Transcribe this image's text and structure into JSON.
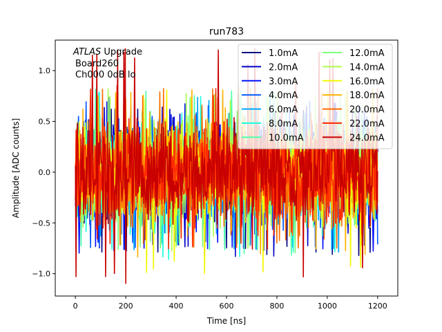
{
  "chart_data": {
    "type": "line",
    "title": "run783",
    "xlabel": "Time [ns]",
    "ylabel": "Amplitude [ADC counts]",
    "xlim": [
      -80,
      1280
    ],
    "ylim": [
      -1.22,
      1.3
    ],
    "xticks": [
      0,
      200,
      400,
      600,
      800,
      1000,
      1200
    ],
    "yticks": [
      -1.0,
      -0.5,
      0.0,
      0.5,
      1.0
    ],
    "xtick_labels": [
      "0",
      "200",
      "400",
      "600",
      "800",
      "1000",
      "1200"
    ],
    "ytick_labels": [
      "−1.0",
      "−0.5",
      "0.0",
      "0.5",
      "1.0"
    ],
    "grid": false,
    "legend_position": "top-right",
    "annotation": {
      "atlas": "ATLAS",
      "upgrade": " Upgrade",
      "board": "Board260",
      "channel": "Ch000 0dB lo"
    },
    "x_range_ns": [
      0,
      1200
    ],
    "series": [
      {
        "name": "1.0mA",
        "color": "#00007f",
        "min": -0.85,
        "max": 0.62,
        "seed": 11
      },
      {
        "name": "2.0mA",
        "color": "#0000c8",
        "min": -0.84,
        "max": 0.68,
        "seed": 23
      },
      {
        "name": "3.0mA",
        "color": "#0010ff",
        "min": -0.8,
        "max": 0.7,
        "seed": 37
      },
      {
        "name": "4.0mA",
        "color": "#0058ff",
        "min": -0.78,
        "max": 0.74,
        "seed": 41
      },
      {
        "name": "6.0mA",
        "color": "#00a4ff",
        "min": -0.8,
        "max": 0.79,
        "seed": 53
      },
      {
        "name": "8.0mA",
        "color": "#19ffde",
        "min": -0.86,
        "max": 0.8,
        "seed": 67
      },
      {
        "name": "10.0mA",
        "color": "#4dffaa",
        "min": -0.82,
        "max": 0.82,
        "seed": 71
      },
      {
        "name": "12.0mA",
        "color": "#7dff7a",
        "min": -0.8,
        "max": 0.8,
        "seed": 83
      },
      {
        "name": "14.0mA",
        "color": "#aaff4d",
        "min": -0.78,
        "max": 0.82,
        "seed": 97
      },
      {
        "name": "16.0mA",
        "color": "#f4f802",
        "min": -1.02,
        "max": 0.84,
        "seed": 101
      },
      {
        "name": "18.0mA",
        "color": "#ffb200",
        "min": -0.84,
        "max": 0.84,
        "seed": 113
      },
      {
        "name": "20.0mA",
        "color": "#ff6c00",
        "min": -0.78,
        "max": 0.86,
        "seed": 127
      },
      {
        "name": "22.0mA",
        "color": "#ff2a00",
        "min": -0.76,
        "max": 0.88,
        "seed": 131
      },
      {
        "name": "24.0mA",
        "color": "#c80000",
        "min": -1.1,
        "max": 1.22,
        "seed": 139
      }
    ]
  }
}
